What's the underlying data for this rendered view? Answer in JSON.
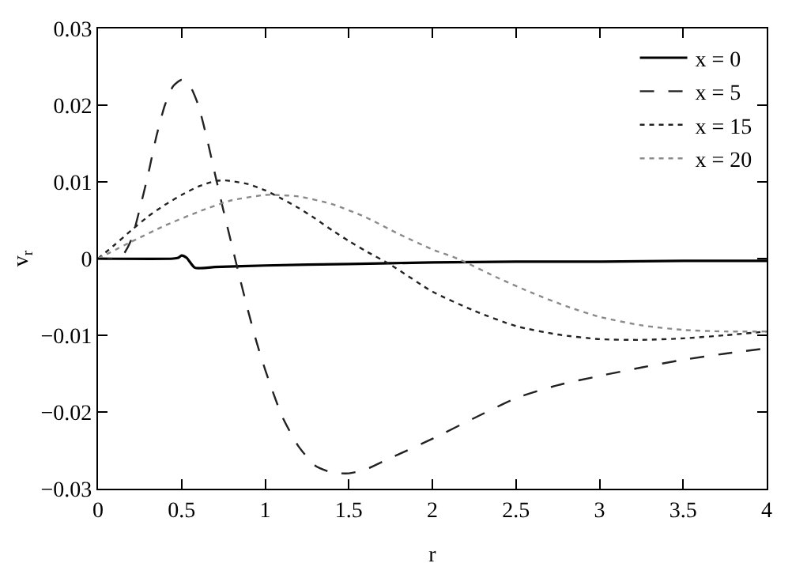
{
  "chart_data": {
    "type": "line",
    "xlabel": "r",
    "ylabel": "v$_{r}$",
    "xlim": [
      0,
      4
    ],
    "ylim": [
      -0.03,
      0.03
    ],
    "xticks": [
      0,
      0.5,
      1,
      1.5,
      2,
      2.5,
      3,
      3.5,
      4
    ],
    "yticks": [
      -0.03,
      -0.02,
      -0.01,
      0,
      0.01,
      0.02,
      0.03
    ],
    "legend": "top right",
    "series": [
      {
        "name": "x = 0",
        "color": "#000000",
        "line_style": "solid",
        "x": [
          0,
          0.45,
          0.48,
          0.5,
          0.53,
          0.58,
          0.7,
          1,
          1.5,
          2,
          2.5,
          3,
          3.5,
          4
        ],
        "values": [
          0,
          0,
          0.0001,
          0.0004,
          0.0001,
          -0.0012,
          -0.0011,
          -0.0009,
          -0.0007,
          -0.0005,
          -0.0004,
          -0.0004,
          -0.0003,
          -0.0003
        ]
      },
      {
        "name": "x = 5",
        "color": "#222222",
        "line_style": "dashed",
        "x": [
          0,
          0.1,
          0.15,
          0.2,
          0.25,
          0.3,
          0.35,
          0.4,
          0.45,
          0.5,
          0.55,
          0.6,
          0.65,
          0.7,
          0.75,
          0.8,
          0.85,
          0.9,
          0.95,
          1,
          1.1,
          1.2,
          1.3,
          1.4,
          1.5,
          1.6,
          1.7,
          1.8,
          2,
          2.25,
          2.5,
          2.75,
          3,
          3.25,
          3.5,
          3.75,
          4
        ],
        "values": [
          0,
          0,
          0.0005,
          0.0025,
          0.0065,
          0.011,
          0.016,
          0.02,
          0.0225,
          0.0233,
          0.0225,
          0.02,
          0.0158,
          0.011,
          0.0063,
          0.0018,
          -0.0027,
          -0.007,
          -0.011,
          -0.0145,
          -0.0205,
          -0.0245,
          -0.027,
          -0.0279,
          -0.028,
          -0.0275,
          -0.0265,
          -0.0255,
          -0.0235,
          -0.0208,
          -0.0182,
          -0.0165,
          -0.0153,
          -0.0142,
          -0.0132,
          -0.0124,
          -0.0117
        ]
      },
      {
        "name": "x = 15",
        "color": "#222222",
        "line_style": "dotted",
        "x": [
          0,
          0.1,
          0.2,
          0.3,
          0.4,
          0.5,
          0.6,
          0.7,
          0.75,
          0.8,
          0.9,
          1,
          1.1,
          1.2,
          1.3,
          1.4,
          1.5,
          1.6,
          1.75,
          2,
          2.25,
          2.5,
          2.75,
          3,
          3.25,
          3.5,
          3.75,
          4
        ],
        "values": [
          0,
          0.0018,
          0.0037,
          0.0055,
          0.007,
          0.0083,
          0.0094,
          0.0101,
          0.0102,
          0.0101,
          0.0097,
          0.0089,
          0.0078,
          0.0066,
          0.0052,
          0.0037,
          0.0023,
          0.001,
          -0.0008,
          -0.0043,
          -0.0068,
          -0.0088,
          -0.0099,
          -0.0105,
          -0.0106,
          -0.0104,
          -0.01,
          -0.0095
        ]
      },
      {
        "name": "x = 20",
        "color": "#8a8a8a",
        "line_style": "dotted",
        "x": [
          0,
          0.2,
          0.4,
          0.6,
          0.8,
          1,
          1.05,
          1.2,
          1.4,
          1.6,
          1.8,
          2,
          2.15,
          2.4,
          2.6,
          2.8,
          3,
          3.25,
          3.5,
          3.75,
          4
        ],
        "values": [
          0,
          0.0022,
          0.0043,
          0.0061,
          0.0076,
          0.0083,
          0.0083,
          0.0081,
          0.0071,
          0.0054,
          0.0032,
          0.0012,
          0,
          -0.0026,
          -0.0045,
          -0.0062,
          -0.0076,
          -0.0087,
          -0.0093,
          -0.0095,
          -0.0095
        ]
      }
    ]
  }
}
